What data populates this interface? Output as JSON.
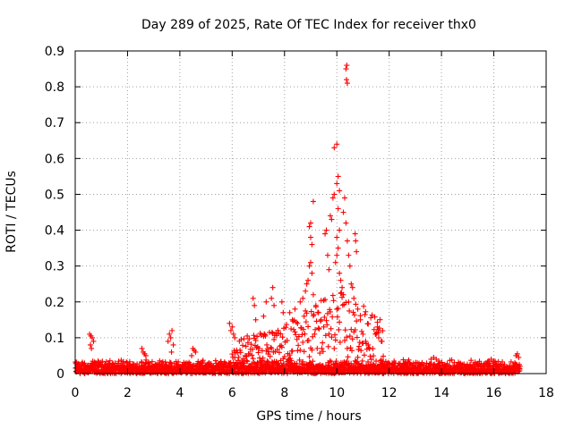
{
  "chart_data": {
    "type": "scatter",
    "title": "Day 289 of 2025, Rate Of TEC Index for receiver thx0",
    "xlabel": "GPS time / hours",
    "ylabel": "ROTI / TECUs",
    "xlim": [
      0,
      18
    ],
    "ylim": [
      0,
      0.9
    ],
    "xticks": [
      "0",
      "2",
      "4",
      "6",
      "8",
      "10",
      "12",
      "14",
      "16",
      "18"
    ],
    "yticks": [
      "0",
      "0.1",
      "0.2",
      "0.3",
      "0.4",
      "0.5",
      "0.6",
      "0.7",
      "0.8",
      "0.9"
    ],
    "grid": true,
    "marker": "plus",
    "series": [
      {
        "name": "ROTI",
        "color": "#ff0000",
        "baseline_band": [
          0.0,
          0.04
        ],
        "x_range": [
          0,
          17
        ],
        "points": [
          [
            0.55,
            0.11
          ],
          [
            0.6,
            0.105
          ],
          [
            0.65,
            0.1
          ],
          [
            0.7,
            0.09
          ],
          [
            0.58,
            0.08
          ],
          [
            0.62,
            0.07
          ],
          [
            2.55,
            0.07
          ],
          [
            2.6,
            0.06
          ],
          [
            2.65,
            0.055
          ],
          [
            2.7,
            0.05
          ],
          [
            3.55,
            0.09
          ],
          [
            3.6,
            0.11
          ],
          [
            3.65,
            0.1
          ],
          [
            3.7,
            0.12
          ],
          [
            3.75,
            0.08
          ],
          [
            3.68,
            0.06
          ],
          [
            4.5,
            0.07
          ],
          [
            4.55,
            0.065
          ],
          [
            4.6,
            0.06
          ],
          [
            4.45,
            0.05
          ],
          [
            5.9,
            0.14
          ],
          [
            6.0,
            0.13
          ],
          [
            5.95,
            0.12
          ],
          [
            6.05,
            0.11
          ],
          [
            6.1,
            0.1
          ],
          [
            6.8,
            0.21
          ],
          [
            6.85,
            0.19
          ],
          [
            6.9,
            0.15
          ],
          [
            7.2,
            0.16
          ],
          [
            7.3,
            0.2
          ],
          [
            7.5,
            0.21
          ],
          [
            7.55,
            0.24
          ],
          [
            7.6,
            0.19
          ],
          [
            7.9,
            0.2
          ],
          [
            7.95,
            0.17
          ],
          [
            8.2,
            0.17
          ],
          [
            8.3,
            0.15
          ],
          [
            8.4,
            0.18
          ],
          [
            8.5,
            0.14
          ],
          [
            8.6,
            0.2
          ],
          [
            8.7,
            0.21
          ],
          [
            8.75,
            0.16
          ],
          [
            8.8,
            0.23
          ],
          [
            8.85,
            0.25
          ],
          [
            8.9,
            0.26
          ],
          [
            8.95,
            0.3
          ],
          [
            9.0,
            0.31
          ],
          [
            9.05,
            0.36
          ],
          [
            9.0,
            0.38
          ],
          [
            8.95,
            0.41
          ],
          [
            9.0,
            0.42
          ],
          [
            9.1,
            0.48
          ],
          [
            9.05,
            0.28
          ],
          [
            9.1,
            0.22
          ],
          [
            9.2,
            0.19
          ],
          [
            9.3,
            0.17
          ],
          [
            9.4,
            0.15
          ],
          [
            9.5,
            0.13
          ],
          [
            9.55,
            0.39
          ],
          [
            9.6,
            0.4
          ],
          [
            9.65,
            0.33
          ],
          [
            9.7,
            0.29
          ],
          [
            9.75,
            0.44
          ],
          [
            9.8,
            0.43
          ],
          [
            9.85,
            0.49
          ],
          [
            9.9,
            0.5
          ],
          [
            9.9,
            0.63
          ],
          [
            10.0,
            0.64
          ],
          [
            10.05,
            0.55
          ],
          [
            10.0,
            0.53
          ],
          [
            10.1,
            0.51
          ],
          [
            10.05,
            0.46
          ],
          [
            10.1,
            0.4
          ],
          [
            10.0,
            0.38
          ],
          [
            10.05,
            0.35
          ],
          [
            10.0,
            0.33
          ],
          [
            9.95,
            0.31
          ],
          [
            10.1,
            0.28
          ],
          [
            10.15,
            0.26
          ],
          [
            10.2,
            0.24
          ],
          [
            10.25,
            0.45
          ],
          [
            10.3,
            0.49
          ],
          [
            10.35,
            0.85
          ],
          [
            10.38,
            0.86
          ],
          [
            10.37,
            0.82
          ],
          [
            10.4,
            0.81
          ],
          [
            10.35,
            0.42
          ],
          [
            10.4,
            0.37
          ],
          [
            10.45,
            0.33
          ],
          [
            10.5,
            0.3
          ],
          [
            10.55,
            0.25
          ],
          [
            10.6,
            0.24
          ],
          [
            10.65,
            0.21
          ],
          [
            10.7,
            0.39
          ],
          [
            10.72,
            0.37
          ],
          [
            10.75,
            0.34
          ],
          [
            10.8,
            0.18
          ],
          [
            10.9,
            0.15
          ],
          [
            11.0,
            0.11
          ],
          [
            11.1,
            0.09
          ],
          [
            11.2,
            0.08
          ],
          [
            11.5,
            0.11
          ],
          [
            11.55,
            0.13
          ],
          [
            11.6,
            0.1
          ],
          [
            11.7,
            0.09
          ],
          [
            13.6,
            0.04
          ],
          [
            13.7,
            0.045
          ],
          [
            13.8,
            0.04
          ],
          [
            13.9,
            0.035
          ],
          [
            15.8,
            0.035
          ],
          [
            15.9,
            0.04
          ],
          [
            16.0,
            0.035
          ],
          [
            16.85,
            0.05
          ],
          [
            16.9,
            0.055
          ],
          [
            16.95,
            0.045
          ]
        ]
      }
    ]
  }
}
